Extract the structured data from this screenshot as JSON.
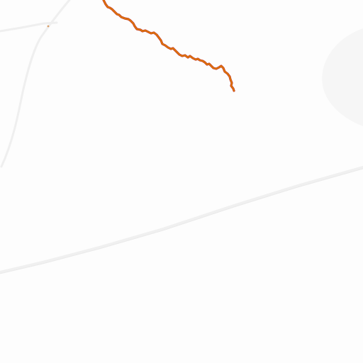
{
  "map": {
    "background_color": "#fdfdfd",
    "road_color": "#f2f2f2",
    "road_edge_color": "#ececec",
    "relief_color": "#f7f7f7",
    "track": {
      "name": "",
      "stroke_color": "#e07800",
      "casing_color": "#c0392b"
    },
    "point_marker_color": "#d9a06b"
  }
}
